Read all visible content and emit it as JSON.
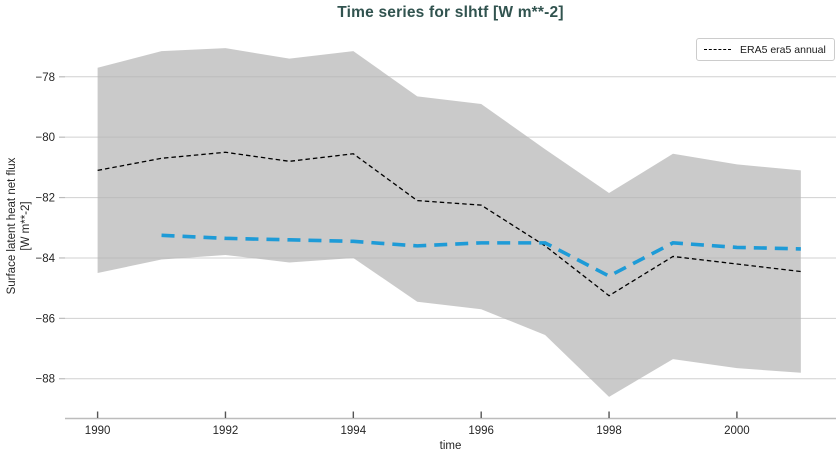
{
  "title": "Time series for slhtf [W m**-2]",
  "legend": {
    "label": "ERA5 era5 annual",
    "position": "upper right"
  },
  "axes": {
    "xlabel": "time",
    "ylabel_line1": "Surface latent heat net flux",
    "ylabel_line2": "[W m**-2]"
  },
  "colors": {
    "title": "#31534f",
    "tick_label": "#262626",
    "gridline": "#d0d0d0",
    "spine": "#bcbcbc",
    "x_tick_mark": "#555555",
    "y_tick_mark": "#bbbbbb",
    "band_fill": "#b4b4b4",
    "era5_line": "#000000",
    "blue_line": "#1e9bd7"
  },
  "chart_data": {
    "type": "line",
    "title": "Time series for slhtf [W m**-2]",
    "xlabel": "time",
    "ylabel": "Surface latent heat net flux [W m**-2]",
    "grid": "horizontal",
    "legend_position": "upper right",
    "xlim": [
      1989.49,
      2001.55
    ],
    "ylim": [
      -89.3,
      -76.55
    ],
    "x_ticks": [
      1990,
      1992,
      1994,
      1996,
      1998,
      2000
    ],
    "y_ticks": [
      -78,
      -80,
      -82,
      -84,
      -86,
      -88
    ],
    "x": [
      1990,
      1991,
      1992,
      1993,
      1994,
      1995,
      1996,
      1997,
      1998,
      1999,
      2000,
      2001
    ],
    "series": [
      {
        "name": "ERA5 era5 annual",
        "color": "#000000",
        "line_style": "dashed",
        "line_width": 1.3,
        "dash_pattern": [
          4.5,
          3
        ],
        "x": [
          1990,
          1991,
          1992,
          1993,
          1994,
          1995,
          1996,
          1997,
          1998,
          1999,
          2000,
          2001
        ],
        "values": [
          -81.1,
          -80.7,
          -80.5,
          -80.8,
          -80.55,
          -82.1,
          -82.25,
          -83.6,
          -85.25,
          -83.95,
          -84.2,
          -84.45
        ],
        "in_legend": true
      },
      {
        "name": "unlabeled-blue-dashed-series",
        "color": "#1e9bd7",
        "line_style": "dashed",
        "line_width": 3.6,
        "dash_pattern": [
          13,
          8
        ],
        "x": [
          1991,
          1992,
          1993,
          1994,
          1995,
          1996,
          1997,
          1998,
          1999,
          2000,
          2001
        ],
        "values": [
          -83.25,
          -83.35,
          -83.4,
          -83.45,
          -83.6,
          -83.5,
          -83.5,
          -84.6,
          -83.5,
          -83.65,
          -83.7
        ],
        "in_legend": false
      }
    ],
    "band": {
      "name": "era5-uncertainty-band",
      "fill_color": "#b4b4b4",
      "fill_opacity": 0.7,
      "x": [
        1990,
        1991,
        1992,
        1993,
        1994,
        1995,
        1996,
        1997,
        1998,
        1999,
        2000,
        2001
      ],
      "upper": [
        -77.7,
        -77.15,
        -77.05,
        -77.4,
        -77.15,
        -78.65,
        -78.9,
        -80.4,
        -81.85,
        -80.55,
        -80.9,
        -81.1
      ],
      "lower": [
        -84.5,
        -84.05,
        -83.9,
        -84.15,
        -84.0,
        -85.45,
        -85.7,
        -86.55,
        -88.6,
        -87.35,
        -87.65,
        -87.8
      ]
    }
  }
}
